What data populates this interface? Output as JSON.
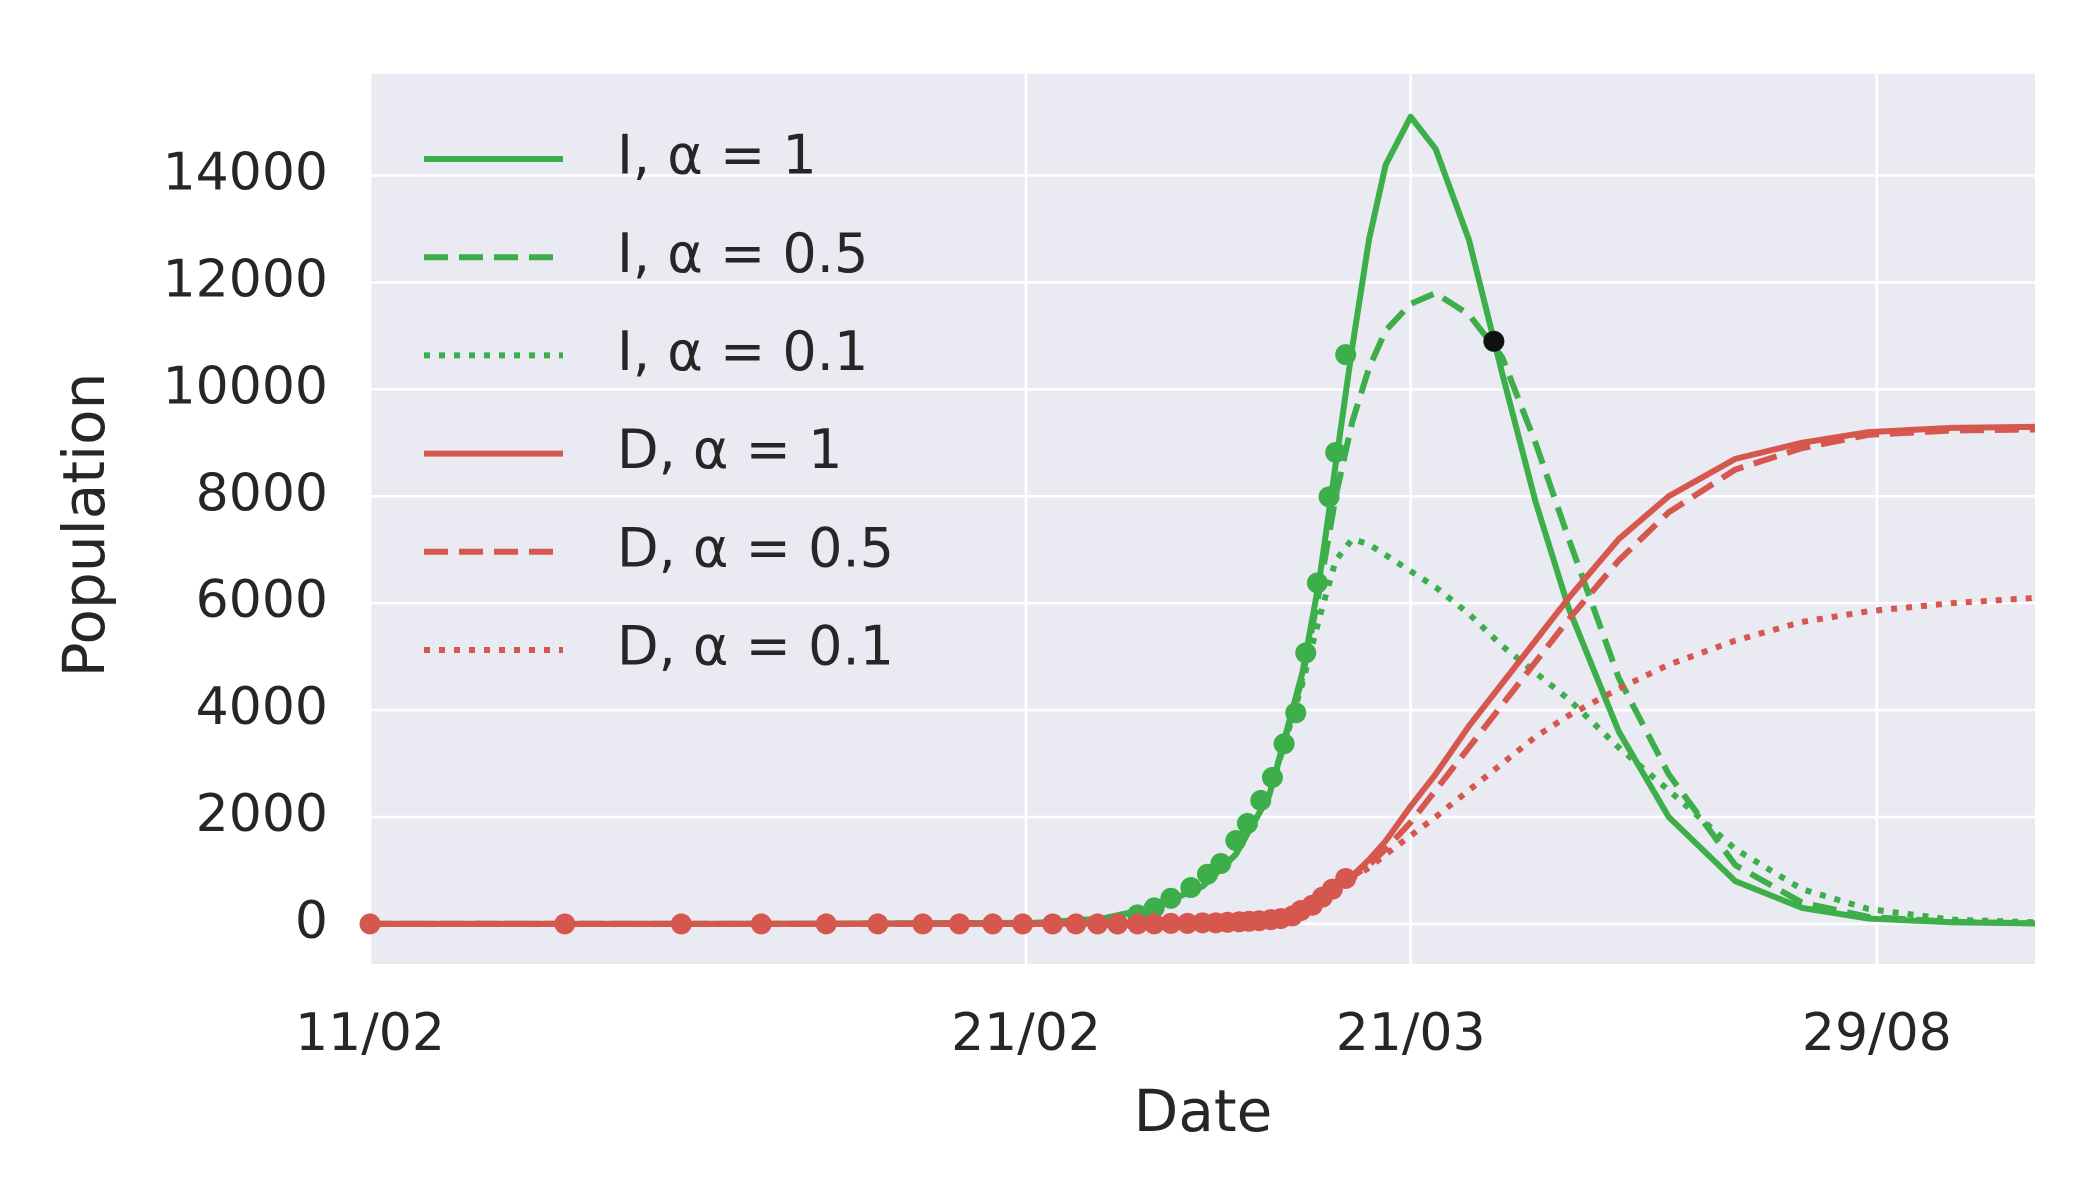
{
  "chart_data": {
    "type": "line",
    "x_label": "Date",
    "y_label": "Population",
    "xlim": [
      0,
      100
    ],
    "xticks": [
      {
        "value": 0,
        "label": "11/02"
      },
      {
        "value": 39.4,
        "label": "21/02"
      },
      {
        "value": 62.5,
        "label": "21/03"
      },
      {
        "value": 90.5,
        "label": "29/08"
      }
    ],
    "ylim": [
      -750,
      15900
    ],
    "yticks": [
      0,
      2000,
      4000,
      6000,
      8000,
      10000,
      12000,
      14000
    ],
    "grid": true,
    "legend": "upper left",
    "background": "#eaeaf2",
    "x": [
      0,
      20,
      40,
      44,
      47,
      50,
      52,
      54,
      56,
      57,
      58,
      59,
      60,
      61,
      62.5,
      64,
      66,
      68,
      70,
      72,
      75,
      78,
      82,
      86,
      90,
      95,
      100
    ],
    "series": [
      {
        "name": "I, α = 1",
        "color": "#3cae4a",
        "style": "solid",
        "values": [
          0,
          0,
          20,
          100,
          300,
          700,
          1300,
          2400,
          4700,
          6400,
          8600,
          10800,
          12800,
          14200,
          15100,
          14500,
          12800,
          10300,
          7900,
          5900,
          3600,
          2000,
          800,
          300,
          100,
          30,
          10
        ]
      },
      {
        "name": "I, α = 0.5",
        "color": "#3cae4a",
        "style": "dashed",
        "values": [
          0,
          0,
          20,
          100,
          300,
          700,
          1300,
          2400,
          4600,
          6200,
          8000,
          9400,
          10400,
          11100,
          11600,
          11800,
          11400,
          10600,
          9000,
          7200,
          4600,
          2800,
          1100,
          400,
          130,
          40,
          10
        ]
      },
      {
        "name": "I, α = 0.1",
        "color": "#3cae4a",
        "style": "dotted",
        "values": [
          0,
          0,
          20,
          100,
          300,
          700,
          1300,
          2400,
          4500,
          5700,
          6800,
          7200,
          7100,
          6900,
          6600,
          6300,
          5800,
          5200,
          4700,
          4200,
          3300,
          2500,
          1400,
          650,
          280,
          80,
          30
        ]
      },
      {
        "name": "D, α = 1",
        "color": "#d6574e",
        "style": "solid",
        "values": [
          0,
          0,
          0,
          10,
          30,
          60,
          100,
          160,
          300,
          450,
          650,
          900,
          1200,
          1550,
          2200,
          2800,
          3700,
          4500,
          5300,
          6100,
          7200,
          8000,
          8700,
          9000,
          9200,
          9280,
          9300
        ]
      },
      {
        "name": "D, α = 0.5",
        "color": "#d6574e",
        "style": "dashed",
        "values": [
          0,
          0,
          0,
          10,
          30,
          60,
          100,
          160,
          300,
          450,
          650,
          880,
          1100,
          1400,
          1900,
          2500,
          3300,
          4100,
          4900,
          5700,
          6800,
          7700,
          8500,
          8900,
          9150,
          9230,
          9250
        ]
      },
      {
        "name": "D, α = 0.1",
        "color": "#d6574e",
        "style": "dotted",
        "values": [
          0,
          0,
          0,
          10,
          30,
          60,
          100,
          160,
          300,
          450,
          650,
          850,
          1050,
          1300,
          1650,
          2000,
          2500,
          3000,
          3500,
          3900,
          4400,
          4850,
          5300,
          5650,
          5850,
          6000,
          6100
        ]
      }
    ],
    "points": [
      {
        "color": "#3cae4a",
        "x": [
          44.9,
          46.1,
          47.1,
          48.1,
          49.3,
          50.3,
          51.1,
          52.0,
          52.7,
          53.5,
          54.2,
          54.9,
          55.6,
          56.2,
          56.9,
          57.6,
          58.0,
          58.6
        ],
        "values": [
          0,
          170,
          300,
          480,
          680,
          930,
          1130,
          1560,
          1880,
          2310,
          2740,
          3370,
          3950,
          5070,
          6380,
          7990,
          8820,
          10650
        ]
      },
      {
        "color": "#d6574e",
        "x": [
          0,
          11.7,
          18.7,
          23.5,
          27.4,
          30.5,
          33.2,
          35.4,
          37.4,
          39.2,
          41.0,
          42.4,
          43.7,
          44.9,
          46.1,
          47.1,
          48.1,
          49.1,
          50.0,
          50.8,
          51.5,
          52.2,
          52.8,
          53.4,
          54.1,
          54.7,
          55.4,
          55.9,
          56.6,
          57.2,
          57.8,
          58.6
        ],
        "values": [
          0,
          0,
          0,
          0,
          0,
          0,
          0,
          0,
          0,
          0,
          0,
          0,
          0,
          0,
          0,
          0,
          10,
          10,
          20,
          20,
          30,
          40,
          50,
          60,
          80,
          100,
          150,
          250,
          350,
          500,
          650,
          850
        ]
      },
      {
        "color": "#111111",
        "x": [
          67.5
        ],
        "values": [
          10900
        ]
      }
    ]
  }
}
